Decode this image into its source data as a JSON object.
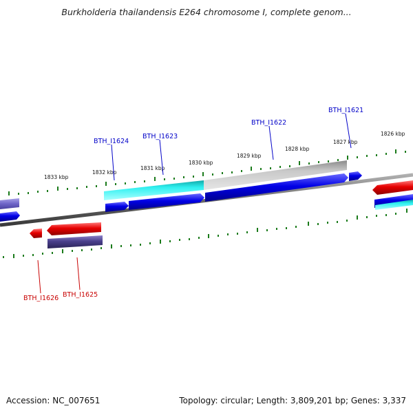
{
  "title": "Burkholderia thailandensis E264 chromosome I, complete genom...",
  "footer": {
    "accession": "Accession: NC_007651",
    "info": "Topology: circular; Length: 3,809,201 bp; Genes: 3,337"
  },
  "scale_labels": [
    "1833 kbp",
    "1832 kbp",
    "1831 kbp",
    "1830 kbp",
    "1829 kbp",
    "1828 kbp",
    "1827 kbp",
    "1826 kbp"
  ],
  "gene_labels": [
    {
      "text": "BTH_I1624",
      "color": "#0000c8"
    },
    {
      "text": "BTH_I1623",
      "color": "#0000c8"
    },
    {
      "text": "BTH_I1622",
      "color": "#0000c8"
    },
    {
      "text": "BTH_I1621",
      "color": "#0000c8"
    },
    {
      "text": "BTH_I1626",
      "color": "#c80000"
    },
    {
      "text": "BTH_I1625",
      "color": "#c80000"
    }
  ],
  "colors": {
    "forward_gene": "#0000e6",
    "reverse_gene": "#e60000",
    "cds_highlight": "#19e6e6",
    "gray_feature": "#bdbdbd",
    "purple_feature": "#4a3f8c",
    "tick": "#1a7a1a",
    "backbone": "#707070"
  }
}
